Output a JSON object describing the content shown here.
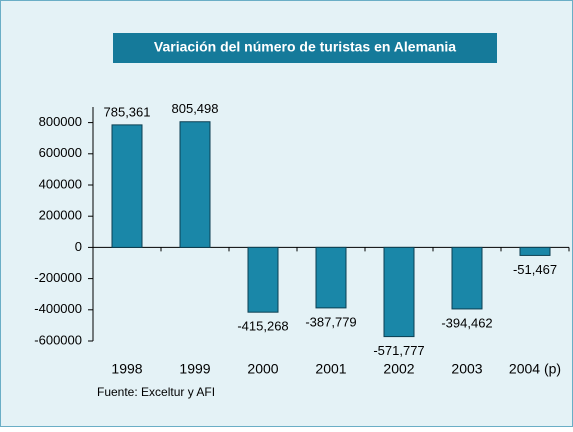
{
  "chart_data": {
    "type": "bar",
    "title": "Variación del número de turistas en Alemania",
    "categories": [
      "1998",
      "1999",
      "2000",
      "2001",
      "2002",
      "2003",
      "2004 (p)"
    ],
    "values": [
      785361,
      805498,
      -415268,
      -387779,
      -571777,
      -394462,
      -51467
    ],
    "value_labels": [
      "785,361",
      "805,498",
      "-415,268",
      "-387,779",
      "-571,777",
      "-394,462",
      "-51,467"
    ],
    "color": "#1a87a8",
    "ylim": [
      -600000,
      900000
    ],
    "yticks": [
      -600000,
      -400000,
      -200000,
      0,
      200000,
      400000,
      600000,
      800000
    ],
    "source": "Fuente: Exceltur y AFI"
  }
}
